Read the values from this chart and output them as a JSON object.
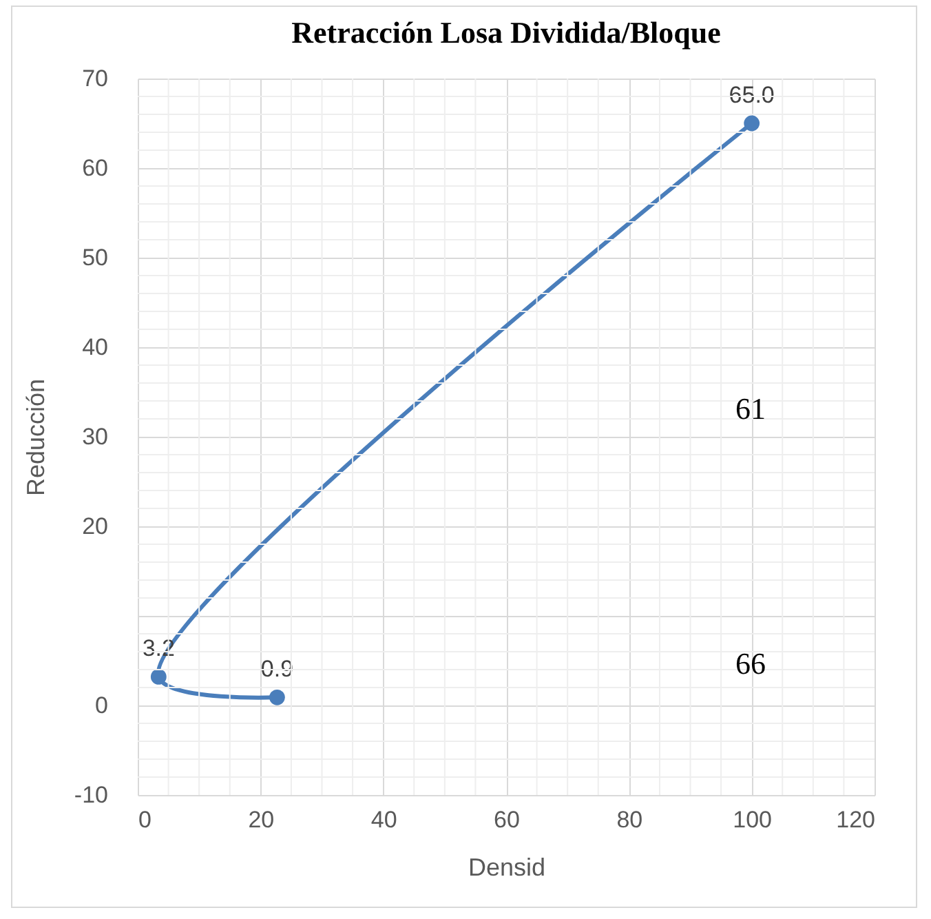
{
  "chart_data": {
    "type": "line",
    "title": "Retracción  Losa Dividida/Bloque",
    "xlabel": "Densid",
    "ylabel": "Reducción",
    "x": [
      22.7,
      3.4,
      100
    ],
    "series": [
      {
        "color": "#4a7ebb",
        "values": [
          0.9,
          3.2,
          65
        ]
      }
    ],
    "value_labels": [
      "0.9",
      "3.2",
      "65.0"
    ],
    "marker": "circle",
    "line_style": "solid",
    "grid": true,
    "xlim": [
      0,
      120
    ],
    "xticks": [
      0,
      20,
      40,
      60,
      80,
      100,
      120
    ],
    "ylim": [
      -10,
      70
    ],
    "yticks": [
      -10,
      0,
      {
        "value": 10,
        "label": null
      },
      20,
      30,
      40,
      50,
      60,
      70
    ],
    "annotations": [
      "61",
      "66"
    ]
  }
}
